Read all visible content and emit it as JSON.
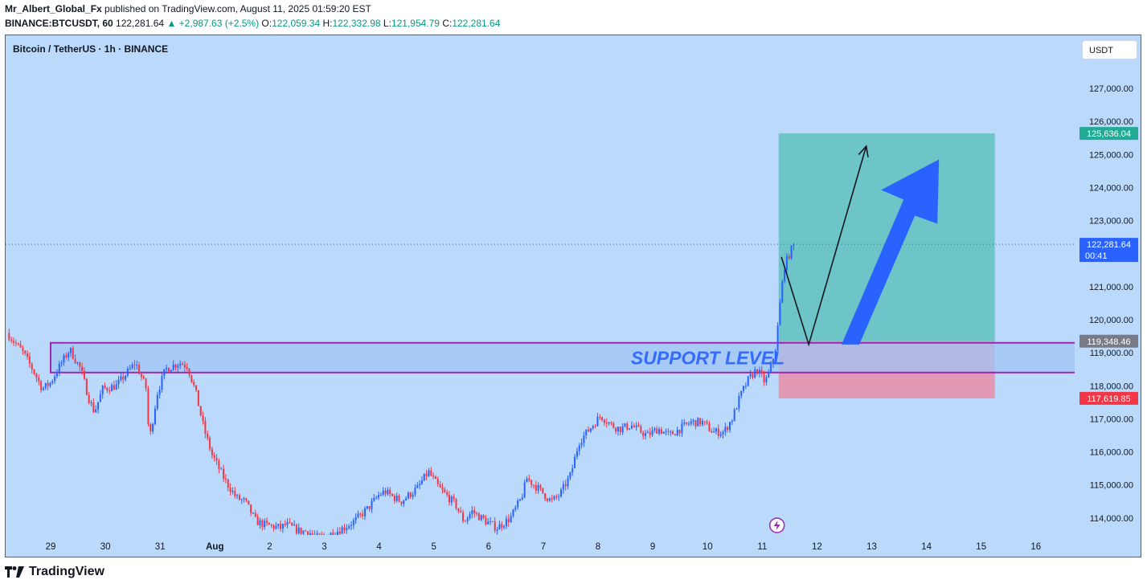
{
  "header": {
    "author": "Mr_Albert_Global_Fx",
    "published_text": "published on TradingView.com, August 11, 2025 01:59:20 EST",
    "symbol": "BINANCE:BTCUSDT, 60",
    "last_price": "122,281.64",
    "change_arrow": "▲",
    "change": "+2,987.63 (+2.5%)",
    "o_label": "O:",
    "o_value": "122,059.34",
    "h_label": "H:",
    "h_value": "122,332.98",
    "l_label": "L:",
    "l_value": "121,954.79",
    "c_label": "C:",
    "c_value": "122,281.64"
  },
  "chart_title": "Bitcoin / TetherUS · 1h · BINANCE",
  "currency_button": "USDT",
  "footer_brand": "TradingView",
  "colors": {
    "background": "#bbdafb",
    "bull": "#2962ff",
    "bear": "#f23645",
    "target_zone": "#5fc1bd",
    "stop_zone": "#e88ca6",
    "support_box": "#a2c4f5",
    "support_border": "#9c27b0",
    "target_tag": "#22ab94",
    "stop_tag": "#f23645",
    "entry_tag": "#787b86",
    "price_tag": "#2962ff",
    "arrow": "#2962ff"
  },
  "chart_data": {
    "type": "candlestick",
    "title": "Bitcoin / TetherUS · 1h · BINANCE",
    "y_ticks": [
      127000,
      126000,
      125000,
      124000,
      123000,
      122000,
      121000,
      120000,
      119000,
      118000,
      117000,
      116000,
      115000,
      114000
    ],
    "y_tick_labels": [
      "127,000.00",
      "126,000.00",
      "125,000.00",
      "124,000.00",
      "123,000.00",
      "122,000.00",
      "121,000.00",
      "120,000.00",
      "119,000.00",
      "118,000.00",
      "117,000.00",
      "116,000.00",
      "115,000.00",
      "114,000.00"
    ],
    "ylim": [
      113500,
      127800
    ],
    "x_labels": [
      "29",
      "30",
      "31",
      "Aug",
      "2",
      "3",
      "4",
      "5",
      "6",
      "7",
      "8",
      "9",
      "10",
      "11",
      "12",
      "13",
      "14",
      "15",
      "16"
    ],
    "x_label_day_index": [
      0,
      1,
      2,
      3,
      4,
      5,
      6,
      7,
      8,
      9,
      10,
      11,
      12,
      13,
      14,
      15,
      16,
      17,
      18
    ],
    "annotation_text": "SUPPORT LEVEL",
    "support_zone": {
      "from_day": 0.0,
      "to_day": 18.85,
      "low": 118400,
      "high": 119300
    },
    "position": {
      "entry": 119348.46,
      "target": 125636.04,
      "stop": 117619.85,
      "from_day": 13.3,
      "to_day": 17.25
    },
    "price_tags": {
      "target": "125,636.04",
      "current": "122,281.64",
      "countdown": "00:41",
      "entry": "119,348.46",
      "stop": "117,619.85"
    },
    "current_price": 122281.64,
    "path_keypoints": [
      [
        -0.8,
        119600
      ],
      [
        -0.5,
        119000
      ],
      [
        -0.3,
        118400
      ],
      [
        -0.15,
        117900
      ],
      [
        0.0,
        118100
      ],
      [
        0.2,
        118700
      ],
      [
        0.35,
        119100
      ],
      [
        0.55,
        118500
      ],
      [
        0.7,
        117600
      ],
      [
        0.8,
        117200
      ],
      [
        0.95,
        117900
      ],
      [
        1.2,
        118000
      ],
      [
        1.35,
        118300
      ],
      [
        1.55,
        118700
      ],
      [
        1.75,
        117900
      ],
      [
        1.8,
        116300
      ],
      [
        1.95,
        117800
      ],
      [
        2.1,
        118500
      ],
      [
        2.35,
        118700
      ],
      [
        2.5,
        118600
      ],
      [
        2.65,
        117800
      ],
      [
        2.8,
        116700
      ],
      [
        2.95,
        115900
      ],
      [
        3.2,
        115100
      ],
      [
        3.4,
        114600
      ],
      [
        3.55,
        114500
      ],
      [
        3.75,
        113900
      ],
      [
        3.9,
        113800
      ],
      [
        4.2,
        113700
      ],
      [
        4.3,
        113800
      ],
      [
        4.55,
        113600
      ],
      [
        4.7,
        113600
      ],
      [
        4.85,
        113400
      ],
      [
        5.1,
        113500
      ],
      [
        5.35,
        113700
      ],
      [
        5.55,
        113900
      ],
      [
        5.8,
        114300
      ],
      [
        6.0,
        114700
      ],
      [
        6.1,
        114800
      ],
      [
        6.4,
        114500
      ],
      [
        6.7,
        114900
      ],
      [
        6.9,
        115400
      ],
      [
        7.1,
        114900
      ],
      [
        7.4,
        114400
      ],
      [
        7.55,
        113900
      ],
      [
        7.7,
        114200
      ],
      [
        7.95,
        113900
      ],
      [
        8.15,
        113700
      ],
      [
        8.4,
        114000
      ],
      [
        8.6,
        114600
      ],
      [
        8.7,
        115200
      ],
      [
        8.9,
        114900
      ],
      [
        9.15,
        114500
      ],
      [
        9.3,
        114700
      ],
      [
        9.5,
        115300
      ],
      [
        9.65,
        116300
      ],
      [
        9.8,
        116600
      ],
      [
        10.05,
        117100
      ],
      [
        10.25,
        116800
      ],
      [
        10.4,
        116700
      ],
      [
        10.6,
        116800
      ],
      [
        10.9,
        116500
      ],
      [
        11.1,
        116700
      ],
      [
        11.3,
        116500
      ],
      [
        11.5,
        116700
      ],
      [
        11.7,
        116900
      ],
      [
        11.9,
        116900
      ],
      [
        12.1,
        116600
      ],
      [
        12.3,
        116600
      ],
      [
        12.45,
        117000
      ],
      [
        12.6,
        117700
      ],
      [
        12.75,
        118200
      ],
      [
        12.9,
        118500
      ],
      [
        13.05,
        118100
      ],
      [
        13.15,
        118500
      ],
      [
        13.25,
        119200
      ],
      [
        13.32,
        120400
      ],
      [
        13.4,
        121600
      ],
      [
        13.5,
        122000
      ],
      [
        13.58,
        122281.64
      ]
    ],
    "drawn_path": [
      [
        13.35,
        121900
      ],
      [
        13.85,
        119250
      ],
      [
        14.9,
        125250
      ]
    ]
  }
}
